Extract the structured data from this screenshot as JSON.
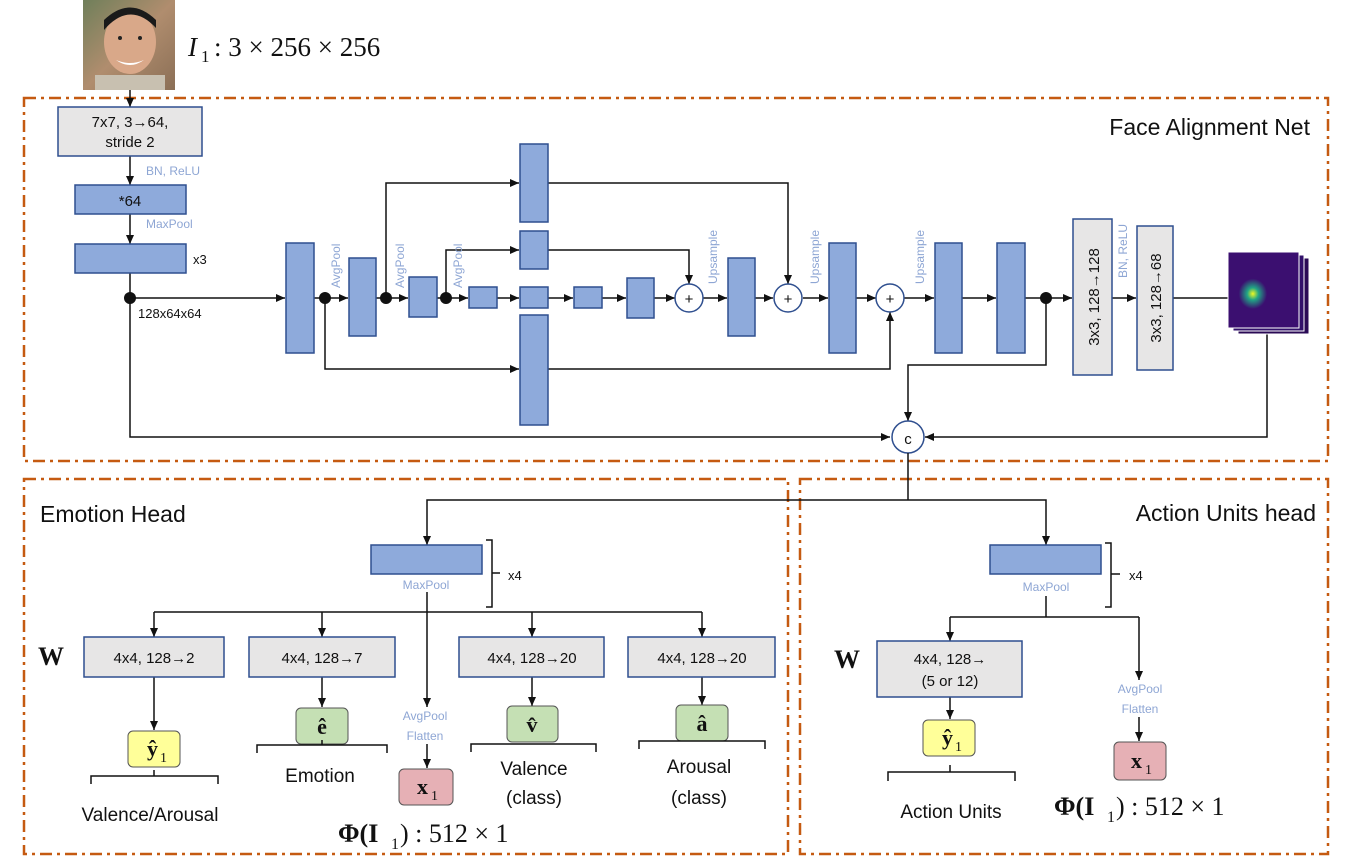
{
  "input": {
    "label": "I",
    "sub": "1",
    "dims": ": 3 × 256 × 256"
  },
  "sections": {
    "face_alignment": "Face Alignment Net",
    "emotion": "Emotion Head",
    "action_units": "Action Units head"
  },
  "fan": {
    "conv1_line1": "7x7, 3→64,",
    "conv1_line2": "stride 2",
    "bn_relu": "BN, ReLU",
    "block64": "*64",
    "maxpool": "MaxPool",
    "x3": "x3",
    "feat": "128x64x64",
    "avgpool": "AvgPool",
    "upsample": "Upsample",
    "plus": "+",
    "conv_128": "3x3, 128→128",
    "bn_relu2": "BN, ReLU",
    "conv_68": "3x3, 128→68",
    "concat": "c"
  },
  "emotion_head": {
    "maxpool": "MaxPool",
    "x4": "x4",
    "W": "W",
    "fc1": "4x4, 128→2",
    "fc2": "4x4, 128→7",
    "fc3": "4x4, 128→20",
    "fc4": "4x4, 128→20",
    "avgpool": "AvgPool",
    "flatten": "Flatten",
    "y1": "ŷ",
    "y1_sub": "1",
    "e": "ê",
    "x1": "x",
    "x1_sub": "1",
    "v": "v̂",
    "a": "â",
    "label_va": "Valence/Arousal",
    "label_emotion": "Emotion",
    "label_valence": "Valence",
    "label_valence2": "(class)",
    "label_arousal": "Arousal",
    "label_arousal2": "(class)",
    "phi": "Φ(I",
    "phi_sub": "1",
    "phi_rest": ") : 512 × 1"
  },
  "au_head": {
    "maxpool": "MaxPool",
    "x4": "x4",
    "W": "W",
    "fc_line1": "4x4, 128→",
    "fc_line2": "(5 or 12)",
    "avgpool": "AvgPool",
    "flatten": "Flatten",
    "y1": "ŷ",
    "y1_sub": "1",
    "x1": "x",
    "x1_sub": "1",
    "label_au": "Action Units",
    "phi": "Φ(I",
    "phi_sub": "1",
    "phi_rest": ") : 512 × 1"
  },
  "colors": {
    "border": "#c55a11",
    "block_fill": "#8eaadb",
    "block_stroke": "#2f4f8f",
    "gray_fill": "#e7e6e6",
    "yellow_fill": "#ffff99",
    "green_fill": "#c5e0b4",
    "pink_fill": "#e6b0b5",
    "heatmap": "#3b0f70"
  }
}
